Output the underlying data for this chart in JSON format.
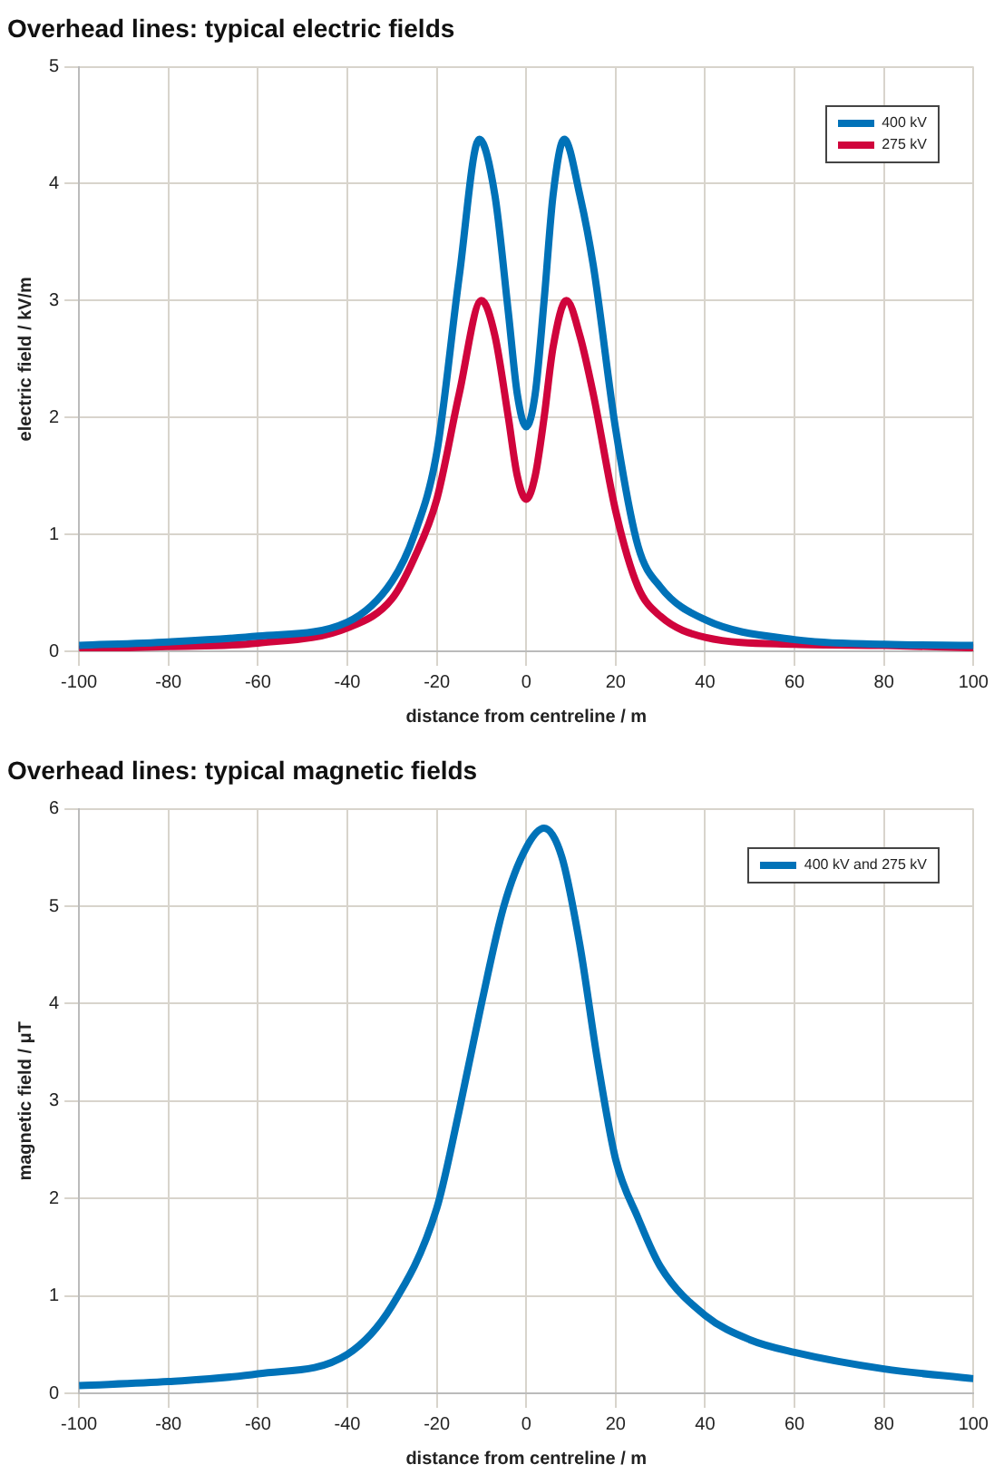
{
  "chart_data": [
    {
      "type": "line",
      "title": "Overhead lines: typical electric fields",
      "xlabel": "distance from centreline / m",
      "ylabel": "electric field / kV/m",
      "xlim": [
        -100,
        100
      ],
      "xticks": [
        -100,
        -80,
        -60,
        -40,
        -20,
        0,
        20,
        40,
        60,
        80,
        100
      ],
      "ylim": [
        0,
        5
      ],
      "yticks": [
        0,
        1,
        2,
        3,
        4,
        5
      ],
      "grid": true,
      "legend": "top right",
      "marker": "none",
      "line_style": "solid",
      "series": [
        {
          "name": "400 kV",
          "color": "#0072b8",
          "x": [
            -100,
            -80,
            -60,
            -40,
            -30,
            -25,
            -20,
            -15,
            -10.5,
            -7,
            -4,
            -2,
            0,
            2,
            4,
            6,
            8.5,
            12,
            15,
            20,
            25,
            30,
            40,
            60,
            80,
            100
          ],
          "values": [
            0.05,
            0.08,
            0.13,
            0.25,
            0.6,
            1.0,
            1.7,
            3.2,
            4.38,
            3.9,
            2.9,
            2.2,
            1.92,
            2.2,
            3.0,
            3.9,
            4.38,
            3.9,
            3.3,
            1.9,
            0.9,
            0.55,
            0.27,
            0.1,
            0.06,
            0.05
          ]
        },
        {
          "name": "275 kV",
          "color": "#d0043c",
          "x": [
            -100,
            -80,
            -60,
            -40,
            -30,
            -25,
            -20,
            -15,
            -10,
            -7,
            -4,
            -2,
            0,
            2,
            4,
            6,
            9,
            12,
            15,
            20,
            25,
            30,
            40,
            60,
            80,
            100
          ],
          "values": [
            0.02,
            0.04,
            0.07,
            0.2,
            0.45,
            0.8,
            1.3,
            2.2,
            3.0,
            2.7,
            2.0,
            1.5,
            1.3,
            1.5,
            2.0,
            2.6,
            3.0,
            2.7,
            2.2,
            1.2,
            0.55,
            0.3,
            0.12,
            0.06,
            0.05,
            0.03
          ]
        }
      ]
    },
    {
      "type": "line",
      "title": "Overhead lines: typical magnetic fields",
      "xlabel": "distance from centreline / m",
      "ylabel": "magnetic field / μT",
      "xlim": [
        -100,
        100
      ],
      "xticks": [
        -100,
        -80,
        -60,
        -40,
        -20,
        0,
        20,
        40,
        60,
        80,
        100
      ],
      "ylim": [
        0,
        6
      ],
      "yticks": [
        0,
        1,
        2,
        3,
        4,
        5,
        6
      ],
      "grid": true,
      "legend": "top right",
      "marker": "none",
      "line_style": "solid",
      "series": [
        {
          "name": "400 kV and 275 kV",
          "color": "#0072b8",
          "x": [
            -100,
            -80,
            -60,
            -40,
            -30,
            -20,
            -15,
            -10,
            -5,
            0,
            4,
            8,
            12,
            16,
            20,
            25,
            30,
            40,
            50,
            60,
            80,
            100
          ],
          "values": [
            0.08,
            0.12,
            0.2,
            0.4,
            0.9,
            1.9,
            2.9,
            4.0,
            5.0,
            5.6,
            5.8,
            5.5,
            4.6,
            3.4,
            2.4,
            1.8,
            1.3,
            0.8,
            0.55,
            0.42,
            0.25,
            0.15
          ]
        }
      ]
    }
  ]
}
